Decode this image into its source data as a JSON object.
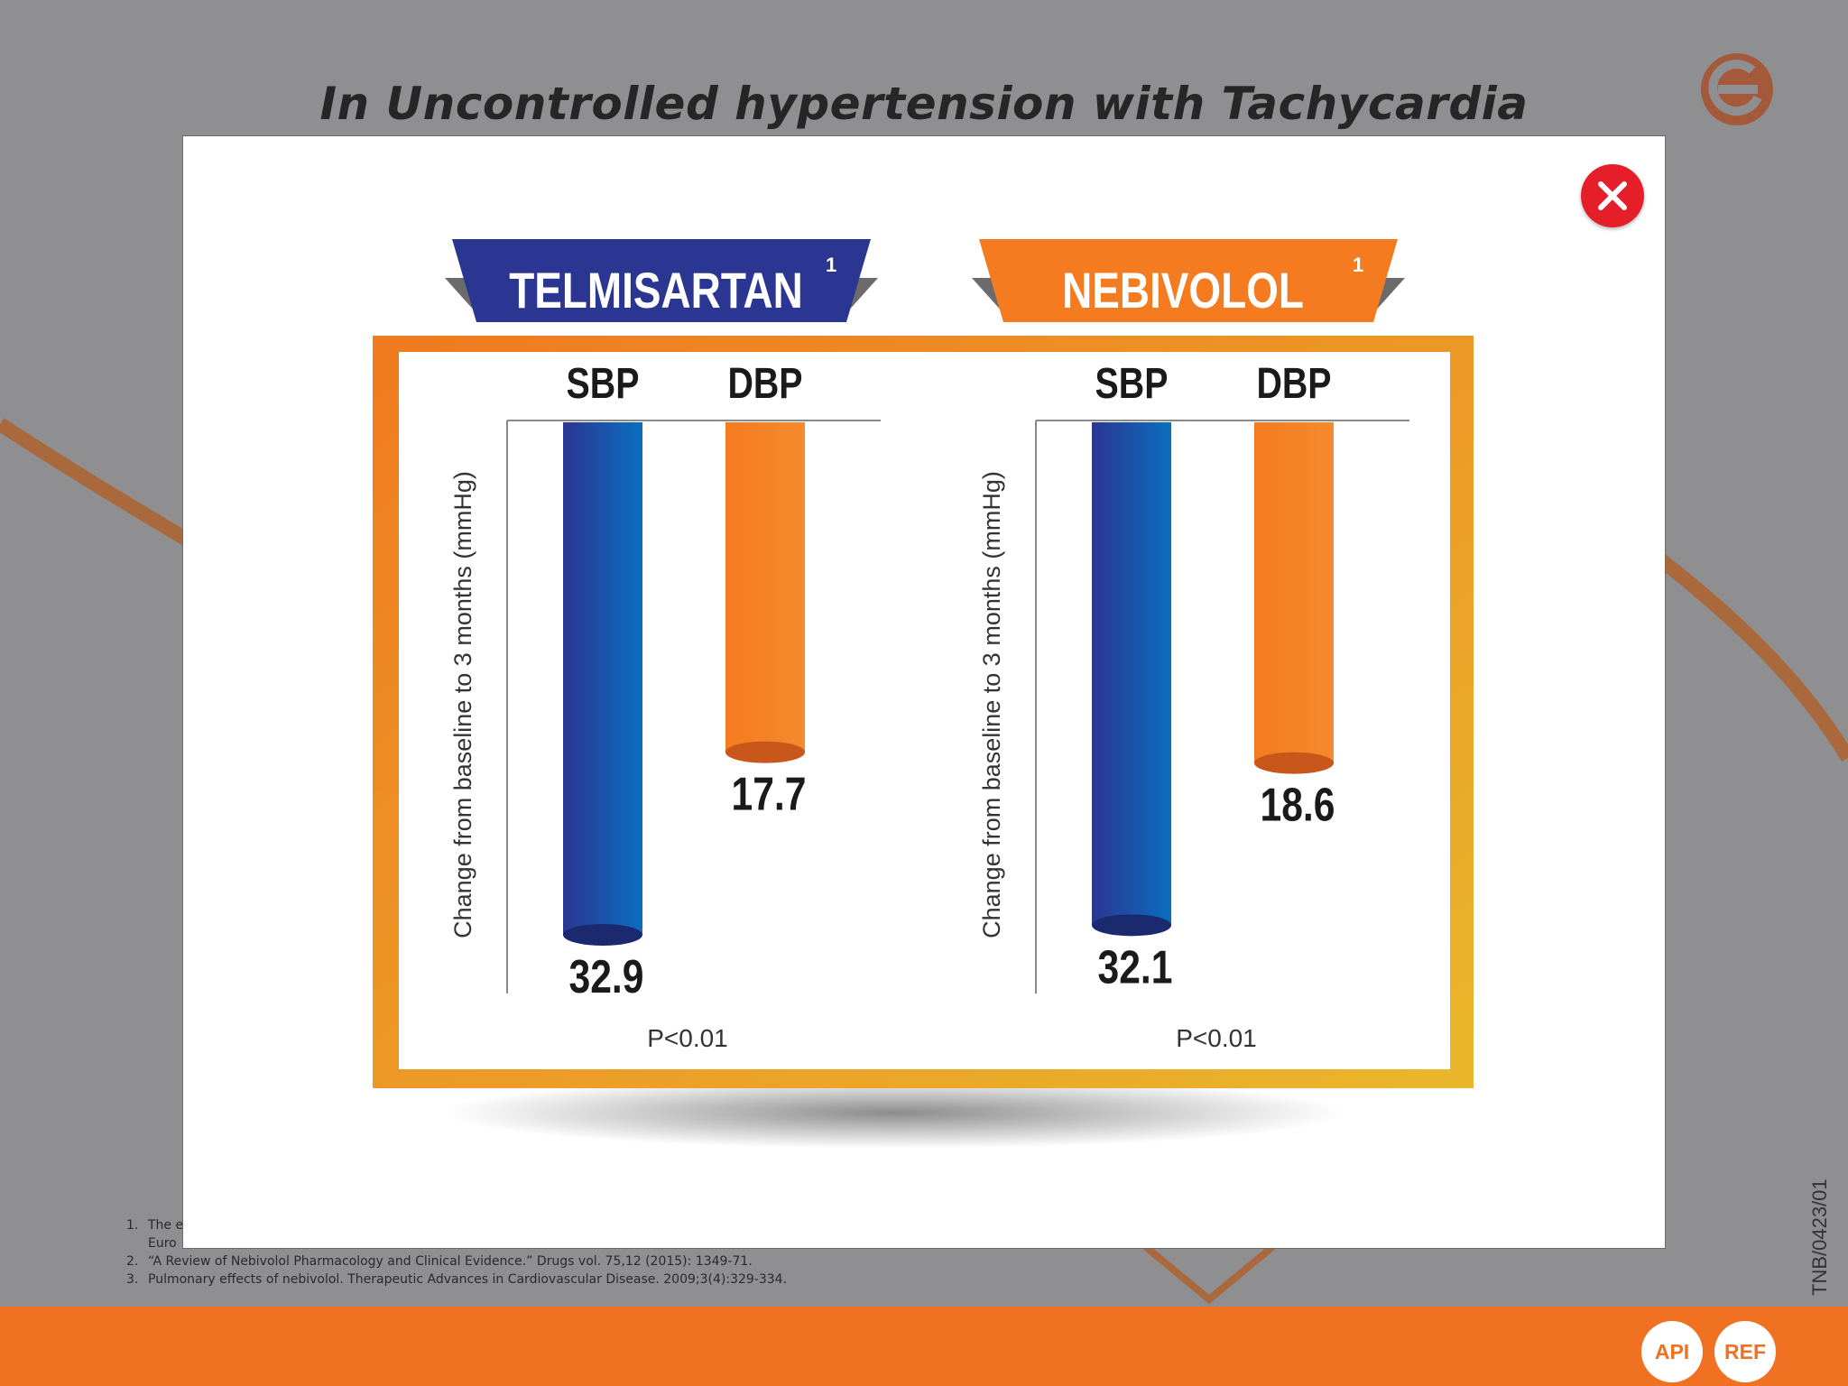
{
  "page_title": "In Uncontrolled hypertension with Tachycardia",
  "doc_code": "TNB/0423/01",
  "references": [
    {
      "num": "1.",
      "text": "The e"
    },
    {
      "num": "",
      "text": "Euro"
    },
    {
      "num": "2.",
      "text": "“A Review of Nebivolol Pharmacology and Clinical Evidence.” Drugs vol. 75,12 (2015): 1349-71."
    },
    {
      "num": "3.",
      "text": "Pulmonary effects of nebivolol. Therapeutic Advances in Cardiovascular Disease. 2009;3(4):329-334."
    }
  ],
  "footer": {
    "api_label": "API",
    "ref_label": "REF"
  },
  "colors": {
    "blue": "#2b3692",
    "blue_light": "#0a6fc0",
    "orange": "#f47b20",
    "red": "#e61e2a",
    "gold": "#e9b72b"
  },
  "icons": {
    "close": "close-icon",
    "logo": "brand-logo-icon"
  },
  "chart_data": [
    {
      "type": "bar",
      "title": "TELMISARTAN",
      "title_sup": "1",
      "title_color": "#2b3692",
      "ylabel": "Change from baseline to 3 months (mmHg)",
      "categories": [
        "SBP",
        "DBP"
      ],
      "values": [
        32.9,
        17.7
      ],
      "bar_colors": [
        "#2b3692",
        "#f47b20"
      ],
      "value_labels": [
        "32.9",
        "17.7"
      ],
      "annotation": "P<0.01",
      "ylim": [
        0,
        32.9
      ]
    },
    {
      "type": "bar",
      "title": "NEBIVOLOL",
      "title_sup": "1",
      "title_color": "#f47b20",
      "ylabel": "Change from baseline to 3 months (mmHg)",
      "categories": [
        "SBP",
        "DBP"
      ],
      "values": [
        32.1,
        18.6
      ],
      "bar_colors": [
        "#2b3692",
        "#f47b20"
      ],
      "value_labels": [
        "32.1",
        "18.6"
      ],
      "annotation": "P<0.01",
      "ylim": [
        0,
        32.9
      ]
    }
  ]
}
